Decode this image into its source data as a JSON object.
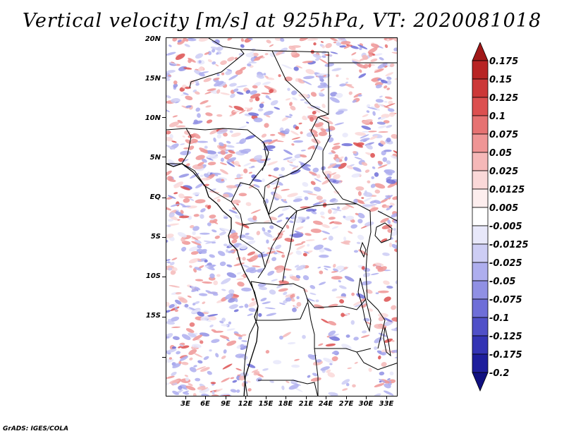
{
  "title": "Vertical velocity [m/s] at 925hPa, VT: 2020081018",
  "footer": "GrADS: IGES/COLA",
  "map": {
    "lat_labels": [
      "20N",
      "15N",
      "10N",
      "5N",
      "EQ",
      "5S",
      "10S",
      "15S"
    ],
    "lon_labels": [
      "3E",
      "6E",
      "9E",
      "12E",
      "15E",
      "18E",
      "21E",
      "24E",
      "27E",
      "30E",
      "33E"
    ]
  },
  "colorbar": {
    "labels": [
      "0.175",
      "0.15",
      "0.125",
      "0.1",
      "0.075",
      "0.05",
      "0.025",
      "0.0125",
      "0.005",
      "-0.005",
      "-0.0125",
      "-0.025",
      "-0.05",
      "-0.075",
      "-0.1",
      "-0.125",
      "-0.175",
      "-0.2"
    ],
    "colors": [
      "#a01818",
      "#b82424",
      "#cc3838",
      "#dc5050",
      "#e67272",
      "#ef9595",
      "#f5b8b8",
      "#fad8d8",
      "#fdeeee",
      "#ffffff",
      "#e8e8fa",
      "#cdcdf4",
      "#aeaeee",
      "#9090e4",
      "#6e6ed8",
      "#5050c8",
      "#3434b4",
      "#1e1e9c",
      "#101080"
    ]
  }
}
